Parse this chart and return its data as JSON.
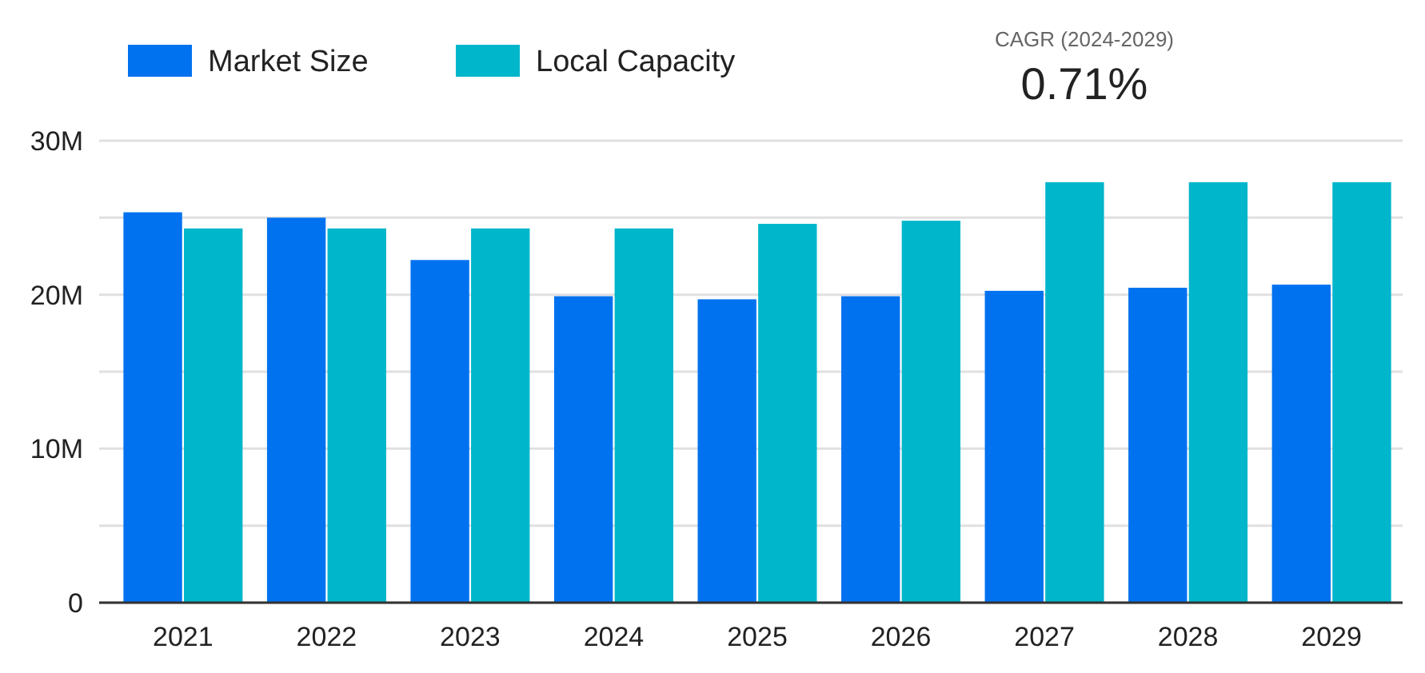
{
  "chart_data": {
    "type": "bar",
    "categories": [
      "2021",
      "2022",
      "2023",
      "2024",
      "2025",
      "2026",
      "2027",
      "2028",
      "2029"
    ],
    "series": [
      {
        "name": "Market Size",
        "color": "#0072f0",
        "values": [
          25350000,
          25000000,
          22250000,
          19900000,
          19700000,
          19900000,
          20250000,
          20450000,
          20650000
        ]
      },
      {
        "name": "Local Capacity",
        "color": "#00b6cb",
        "values": [
          24300000,
          24300000,
          24300000,
          24300000,
          24600000,
          24800000,
          27300000,
          27300000,
          27300000
        ]
      }
    ],
    "ylim": [
      0,
      30000000
    ],
    "yticks": [
      {
        "value": 0,
        "label": "0"
      },
      {
        "value": 5000000,
        "label": null
      },
      {
        "value": 10000000,
        "label": "10M"
      },
      {
        "value": 15000000,
        "label": null
      },
      {
        "value": 20000000,
        "label": "20M"
      },
      {
        "value": 25000000,
        "label": null
      },
      {
        "value": 30000000,
        "label": "30M"
      }
    ],
    "grid": "y",
    "legend": "top left",
    "annotations": [
      "CAGR (2024-2029)",
      "0.71%"
    ]
  }
}
